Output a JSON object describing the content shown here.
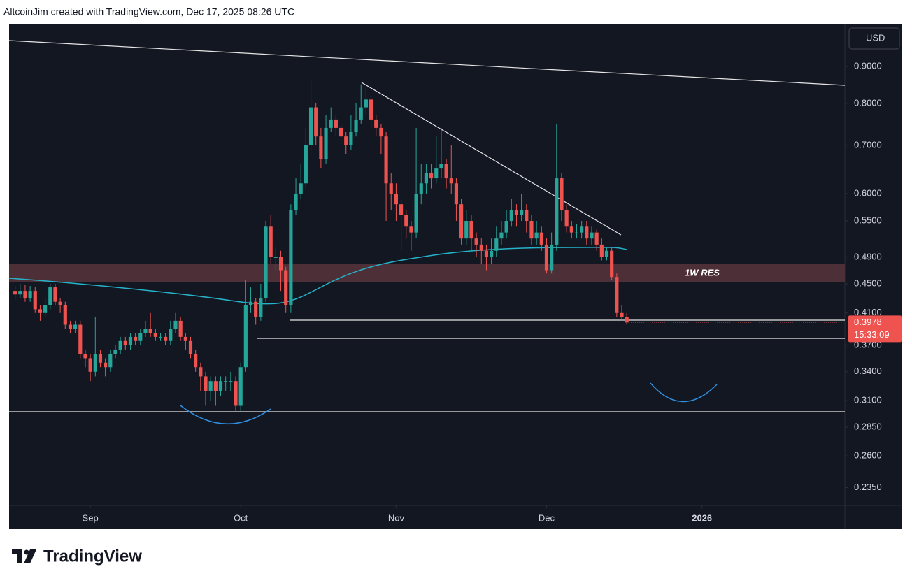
{
  "chart_data": {
    "type": "candlestick",
    "header": "AltcoinJim created with TradingView.com, Dec 17, 2025 08:26 UTC",
    "logo": "TradingView",
    "currency": "USD",
    "annotation": "1W RES",
    "countdown": "15:33:09",
    "up_color": "#26a69a",
    "down_color": "#ef5350",
    "log_scale": true,
    "grid": false,
    "ylim": [
      0.222,
      1.029
    ],
    "yticks": [
      {
        "value": 0.9,
        "label": "0.9000"
      },
      {
        "value": 0.8,
        "label": "0.8000"
      },
      {
        "value": 0.7,
        "label": "0.7000"
      },
      {
        "value": 0.6,
        "label": "0.6000"
      },
      {
        "value": 0.55,
        "label": "0.5500"
      },
      {
        "value": 0.49,
        "label": "0.4900"
      },
      {
        "value": 0.45,
        "label": "0.4500"
      },
      {
        "value": 0.41,
        "label": "0.4100"
      },
      {
        "value": 0.37,
        "label": "0.3700"
      },
      {
        "value": 0.34,
        "label": "0.3400"
      },
      {
        "value": 0.31,
        "label": "0.3100"
      },
      {
        "value": 0.285,
        "label": "0.2850"
      },
      {
        "value": 0.26,
        "label": "0.2600"
      },
      {
        "value": 0.235,
        "label": "0.2350"
      }
    ],
    "xlim": [
      -1.2,
      165.5
    ],
    "xticks": [
      {
        "value": 15,
        "label": "Sep"
      },
      {
        "value": 45,
        "label": "Oct"
      },
      {
        "value": 76,
        "label": "Nov"
      },
      {
        "value": 106,
        "label": "Dec"
      },
      {
        "value": 137,
        "label": "2026"
      }
    ],
    "open": [
      0.44,
      0.435,
      0.44,
      0.43,
      0.44,
      0.415,
      0.41,
      0.42,
      0.445,
      0.425,
      0.42,
      0.395,
      0.39,
      0.395,
      0.36,
      0.355,
      0.34,
      0.36,
      0.35,
      0.345,
      0.36,
      0.365,
      0.375,
      0.37,
      0.38,
      0.375,
      0.385,
      0.39,
      0.385,
      0.38,
      0.38,
      0.375,
      0.39,
      0.4,
      0.38,
      0.375,
      0.36,
      0.345,
      0.335,
      0.32,
      0.33,
      0.32,
      0.33,
      0.33,
      0.33,
      0.305,
      0.345,
      0.42,
      0.425,
      0.405,
      0.43,
      0.54,
      0.49,
      0.49,
      0.47,
      0.42,
      0.57,
      0.6,
      0.62,
      0.7,
      0.79,
      0.72,
      0.67,
      0.74,
      0.76,
      0.74,
      0.72,
      0.7,
      0.73,
      0.76,
      0.79,
      0.81,
      0.76,
      0.74,
      0.72,
      0.62,
      0.6,
      0.58,
      0.56,
      0.54,
      0.53,
      0.6,
      0.62,
      0.64,
      0.63,
      0.65,
      0.66,
      0.63,
      0.62,
      0.58,
      0.52,
      0.55,
      0.52,
      0.51,
      0.5,
      0.49,
      0.5,
      0.52,
      0.53,
      0.55,
      0.57,
      0.56,
      0.57,
      0.55,
      0.52,
      0.53,
      0.51,
      0.47,
      0.51,
      0.63,
      0.57,
      0.54,
      0.53,
      0.53,
      0.54,
      0.52,
      0.53,
      0.51,
      0.49,
      0.5,
      0.46,
      0.41,
      0.405
    ],
    "high": [
      0.447,
      0.45,
      0.448,
      0.447,
      0.445,
      0.42,
      0.43,
      0.45,
      0.45,
      0.43,
      0.425,
      0.4,
      0.4,
      0.4,
      0.365,
      0.36,
      0.405,
      0.365,
      0.355,
      0.365,
      0.37,
      0.38,
      0.38,
      0.385,
      0.385,
      0.39,
      0.4,
      0.41,
      0.39,
      0.385,
      0.385,
      0.4,
      0.41,
      0.405,
      0.385,
      0.38,
      0.365,
      0.35,
      0.34,
      0.335,
      0.335,
      0.335,
      0.335,
      0.34,
      0.335,
      0.35,
      0.455,
      0.445,
      0.43,
      0.45,
      0.55,
      0.56,
      0.505,
      0.5,
      0.475,
      0.58,
      0.63,
      0.66,
      0.74,
      0.86,
      0.8,
      0.74,
      0.77,
      0.79,
      0.77,
      0.75,
      0.73,
      0.77,
      0.8,
      0.85,
      0.84,
      0.82,
      0.77,
      0.75,
      0.73,
      0.64,
      0.62,
      0.59,
      0.57,
      0.55,
      0.74,
      0.66,
      0.66,
      0.66,
      0.72,
      0.74,
      0.67,
      0.7,
      0.63,
      0.59,
      0.57,
      0.56,
      0.53,
      0.52,
      0.51,
      0.52,
      0.54,
      0.55,
      0.57,
      0.59,
      0.58,
      0.6,
      0.58,
      0.56,
      0.55,
      0.54,
      0.52,
      0.53,
      0.75,
      0.64,
      0.58,
      0.55,
      0.545,
      0.55,
      0.55,
      0.54,
      0.535,
      0.52,
      0.505,
      0.505,
      0.465,
      0.42,
      0.41
    ],
    "low": [
      0.428,
      0.43,
      0.425,
      0.425,
      0.41,
      0.4,
      0.405,
      0.415,
      0.42,
      0.41,
      0.39,
      0.385,
      0.385,
      0.355,
      0.345,
      0.33,
      0.335,
      0.345,
      0.335,
      0.34,
      0.355,
      0.36,
      0.365,
      0.365,
      0.37,
      0.37,
      0.38,
      0.38,
      0.375,
      0.375,
      0.37,
      0.37,
      0.385,
      0.375,
      0.365,
      0.355,
      0.34,
      0.32,
      0.305,
      0.31,
      0.305,
      0.315,
      0.32,
      0.32,
      0.3,
      0.3,
      0.34,
      0.41,
      0.395,
      0.4,
      0.425,
      0.48,
      0.47,
      0.44,
      0.41,
      0.41,
      0.56,
      0.59,
      0.61,
      0.68,
      0.7,
      0.65,
      0.66,
      0.73,
      0.72,
      0.7,
      0.68,
      0.69,
      0.72,
      0.75,
      0.77,
      0.74,
      0.72,
      0.68,
      0.55,
      0.57,
      0.55,
      0.5,
      0.52,
      0.5,
      0.52,
      0.58,
      0.6,
      0.61,
      0.62,
      0.63,
      0.61,
      0.6,
      0.55,
      0.51,
      0.51,
      0.5,
      0.49,
      0.48,
      0.47,
      0.48,
      0.49,
      0.51,
      0.52,
      0.54,
      0.54,
      0.55,
      0.53,
      0.51,
      0.51,
      0.5,
      0.465,
      0.465,
      0.5,
      0.55,
      0.53,
      0.52,
      0.52,
      0.52,
      0.51,
      0.51,
      0.5,
      0.485,
      0.485,
      0.455,
      0.405,
      0.4,
      0.395
    ],
    "close": [
      0.435,
      0.44,
      0.43,
      0.44,
      0.415,
      0.41,
      0.42,
      0.445,
      0.425,
      0.42,
      0.395,
      0.39,
      0.395,
      0.36,
      0.355,
      0.34,
      0.36,
      0.35,
      0.345,
      0.36,
      0.365,
      0.375,
      0.37,
      0.38,
      0.375,
      0.385,
      0.39,
      0.385,
      0.38,
      0.38,
      0.375,
      0.39,
      0.4,
      0.38,
      0.375,
      0.36,
      0.345,
      0.335,
      0.32,
      0.33,
      0.32,
      0.33,
      0.33,
      0.33,
      0.305,
      0.345,
      0.42,
      0.425,
      0.405,
      0.43,
      0.54,
      0.49,
      0.49,
      0.47,
      0.42,
      0.57,
      0.6,
      0.62,
      0.7,
      0.79,
      0.72,
      0.67,
      0.74,
      0.76,
      0.74,
      0.72,
      0.7,
      0.73,
      0.76,
      0.79,
      0.81,
      0.76,
      0.74,
      0.72,
      0.62,
      0.6,
      0.58,
      0.56,
      0.54,
      0.53,
      0.6,
      0.62,
      0.64,
      0.63,
      0.65,
      0.66,
      0.63,
      0.62,
      0.58,
      0.52,
      0.55,
      0.52,
      0.51,
      0.5,
      0.49,
      0.5,
      0.52,
      0.53,
      0.55,
      0.57,
      0.56,
      0.57,
      0.55,
      0.52,
      0.53,
      0.51,
      0.47,
      0.51,
      0.63,
      0.57,
      0.54,
      0.53,
      0.53,
      0.54,
      0.52,
      0.53,
      0.51,
      0.49,
      0.5,
      0.46,
      0.41,
      0.405,
      0.3978
    ]
  }
}
